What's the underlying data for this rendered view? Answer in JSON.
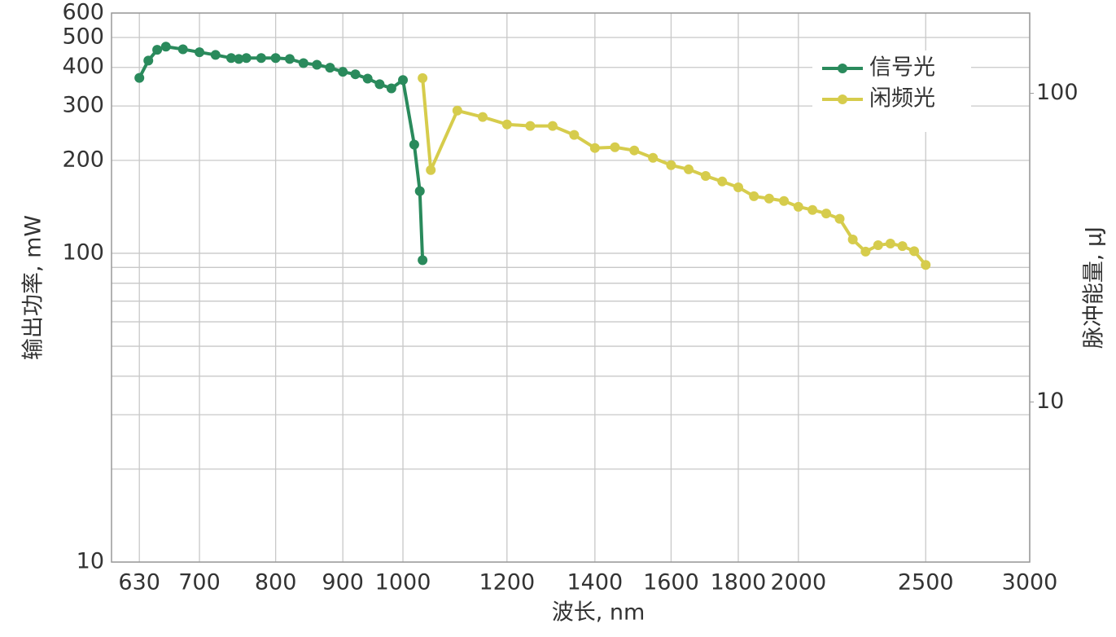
{
  "chart_data": {
    "type": "line",
    "x_label": "波长, nm",
    "y_label": "输出功率, mW",
    "y2_label": "脉冲能量, μJ",
    "xscale": "log",
    "yscale": "log",
    "y2scale": "log",
    "grid": true,
    "legend": "upper right",
    "xlim": [
      600,
      3000
    ],
    "xticks": [
      630,
      700,
      800,
      900,
      1000,
      1200,
      1400,
      1600,
      1800,
      2000,
      2500,
      3000
    ],
    "ylim": [
      10,
      600
    ],
    "yticks": [
      10,
      100,
      200,
      300,
      400,
      500,
      600
    ],
    "minor_yticks": [
      20,
      30,
      40,
      50,
      60,
      70,
      80,
      90
    ],
    "y2lim": [
      3.03,
      182
    ],
    "y2ticks": [
      10,
      100
    ],
    "series": [
      {
        "name": "信号光",
        "color": "#2a8a5c",
        "axis": "y",
        "x": [
          630,
          640,
          650,
          660,
          680,
          700,
          720,
          740,
          750,
          760,
          780,
          800,
          820,
          840,
          860,
          880,
          900,
          920,
          940,
          960,
          980,
          1000,
          1020,
          1030,
          1035
        ],
        "values": [
          370,
          421,
          456,
          467,
          458,
          448,
          439,
          429,
          426,
          429,
          429,
          429,
          426,
          413,
          408,
          399,
          387,
          380,
          368,
          353,
          342,
          364,
          225,
          159,
          95
        ]
      },
      {
        "name": "闲频光",
        "color": "#d6cc4c",
        "axis": "y2",
        "x": [
          1035,
          1050,
          1100,
          1150,
          1200,
          1250,
          1300,
          1350,
          1400,
          1450,
          1500,
          1550,
          1600,
          1650,
          1700,
          1750,
          1800,
          1850,
          1900,
          1950,
          2000,
          2050,
          2100,
          2150,
          2200,
          2250,
          2300,
          2350,
          2400,
          2450,
          2500
        ],
        "values": [
          112,
          56.4,
          87.9,
          83.8,
          79.3,
          78.4,
          78.4,
          73.3,
          66.5,
          66.9,
          65.3,
          61.8,
          58.5,
          56.7,
          54.0,
          51.8,
          49.6,
          46.4,
          45.6,
          44.8,
          42.9,
          41.9,
          40.8,
          39.2,
          33.6,
          30.7,
          32.2,
          32.6,
          32.0,
          30.8,
          27.8
        ]
      }
    ]
  }
}
